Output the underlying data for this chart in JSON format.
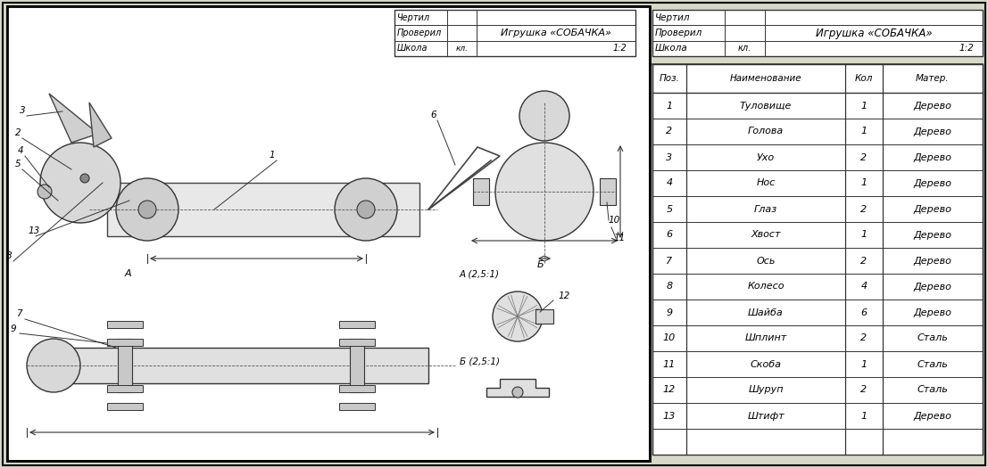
{
  "bg_color": "#d8d8c8",
  "border_color": "#333333",
  "table_rows": [
    {
      "pos": "1",
      "name": "Туловище",
      "qty": "1",
      "mat": "Дерево"
    },
    {
      "pos": "2",
      "name": "Голова",
      "qty": "1",
      "mat": "Дерево"
    },
    {
      "pos": "3",
      "name": "Ухо",
      "qty": "2",
      "mat": "Дерево"
    },
    {
      "pos": "4",
      "name": "Нос",
      "qty": "1",
      "mat": "Дерево"
    },
    {
      "pos": "5",
      "name": "Глаз",
      "qty": "2",
      "mat": "Дерево"
    },
    {
      "pos": "6",
      "name": "Хвост",
      "qty": "1",
      "mat": "Дерево"
    },
    {
      "pos": "7",
      "name": "Ось",
      "qty": "2",
      "mat": "Дерево"
    },
    {
      "pos": "8",
      "name": "Колесо",
      "qty": "4",
      "mat": "Дерево"
    },
    {
      "pos": "9",
      "name": "Шайба",
      "qty": "6",
      "mat": "Дерево"
    },
    {
      "pos": "10",
      "name": "Шплинт",
      "qty": "2",
      "mat": "Сталь"
    },
    {
      "pos": "11",
      "name": "Скоба",
      "qty": "1",
      "mat": "Сталь"
    },
    {
      "pos": "12",
      "name": "Шуруп",
      "qty": "2",
      "mat": "Сталь"
    },
    {
      "pos": "13",
      "name": "Штифт",
      "qty": "1",
      "mat": "Дерево"
    }
  ],
  "col_headers": [
    "Поз.",
    "Наименование",
    "Кол",
    "Матер."
  ],
  "title_text": "Игрушка «СОБАЧКА»",
  "title_block_labels": [
    "Чертил",
    "Проверил",
    "Школа"
  ],
  "scale": "1:2",
  "klass": "кл."
}
